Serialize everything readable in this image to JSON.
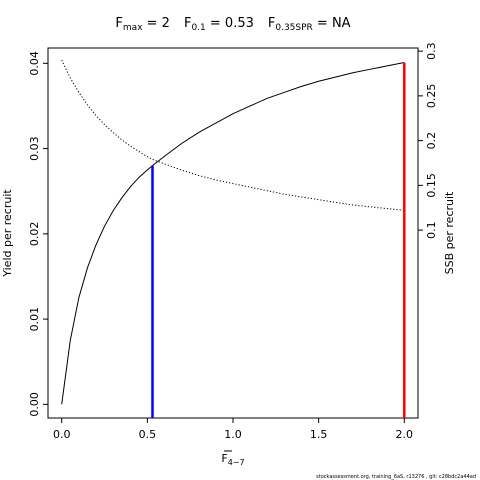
{
  "chart_data": {
    "type": "line",
    "title_parts": [
      {
        "main": "F",
        "sub": "max",
        "rest": " = 2"
      },
      {
        "main": "F",
        "sub": "0.1",
        "rest": " = 0.53"
      },
      {
        "main": "F",
        "sub": "0.35SPR",
        "rest": " = NA"
      }
    ],
    "xlabel": "F",
    "xlabel_sub": "4−7",
    "ylabel": "Yield per recruit",
    "y2label": "SSB per recruit",
    "xlim": [
      -0.08,
      2.08
    ],
    "ylim": [
      -0.0016,
      0.0418
    ],
    "y2lim": [
      -0.11,
      0.3035
    ],
    "x_ticks": [
      0.0,
      0.5,
      1.0,
      1.5,
      2.0
    ],
    "x_tick_labels": [
      "0.0",
      "0.5",
      "1.0",
      "1.5",
      "2.0"
    ],
    "y_ticks": [
      0.0,
      0.01,
      0.02,
      0.03,
      0.04
    ],
    "y_tick_labels": [
      "0.00",
      "0.01",
      "0.02",
      "0.03",
      "0.04"
    ],
    "y2_ticks": [
      0.1,
      0.15,
      0.2,
      0.25,
      0.3
    ],
    "y2_tick_labels": [
      "0.1",
      "0.15",
      "0.2",
      "0.25",
      "0.3"
    ],
    "series": [
      {
        "axis": "left",
        "style": "solid",
        "color": "#000000",
        "x": [
          0.0,
          0.05,
          0.1,
          0.15,
          0.2,
          0.25,
          0.3,
          0.35,
          0.4,
          0.45,
          0.5,
          0.53,
          0.6,
          0.7,
          0.8,
          0.9,
          1.0,
          1.1,
          1.2,
          1.3,
          1.4,
          1.5,
          1.6,
          1.7,
          1.8,
          1.9,
          2.0
        ],
        "values": [
          0.0,
          0.0075,
          0.0125,
          0.016,
          0.0187,
          0.0209,
          0.0227,
          0.0242,
          0.0255,
          0.0266,
          0.0275,
          0.028,
          0.0291,
          0.0306,
          0.0319,
          0.033,
          0.0341,
          0.035,
          0.0359,
          0.0366,
          0.0373,
          0.0379,
          0.0384,
          0.0389,
          0.0393,
          0.0397,
          0.0401
        ]
      },
      {
        "axis": "right",
        "style": "dotted",
        "color": "#000000",
        "x": [
          0.0,
          0.05,
          0.1,
          0.15,
          0.2,
          0.25,
          0.3,
          0.35,
          0.4,
          0.45,
          0.5,
          0.53,
          0.6,
          0.7,
          0.8,
          0.9,
          1.0,
          1.1,
          1.2,
          1.3,
          1.4,
          1.5,
          1.6,
          1.7,
          1.8,
          1.9,
          2.0
        ],
        "values": [
          0.29,
          0.27,
          0.254,
          0.24,
          0.228,
          0.218,
          0.209,
          0.201,
          0.194,
          0.188,
          0.182,
          0.179,
          0.174,
          0.167,
          0.161,
          0.156,
          0.152,
          0.148,
          0.144,
          0.14,
          0.137,
          0.134,
          0.131,
          0.128,
          0.126,
          0.124,
          0.122
        ]
      }
    ],
    "reference_lines": [
      {
        "x": 0.53,
        "y_top": 0.028,
        "color": "#0000ff"
      },
      {
        "x": 2.0,
        "y_top": 0.0401,
        "color": "#ff0000"
      }
    ],
    "footer": "stockassessment.org, training_6aS, r13276 , git: c28bdc2a44ad"
  }
}
